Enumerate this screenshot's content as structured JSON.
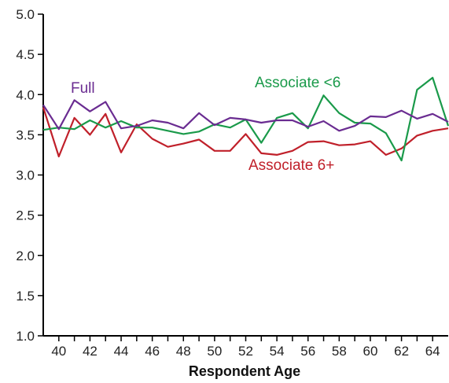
{
  "chart_data": {
    "type": "line",
    "title": "",
    "xlabel": "Respondent Age",
    "ylabel": "",
    "xlim": [
      39,
      65
    ],
    "ylim": [
      1.0,
      5.0
    ],
    "x_tick_labels": [
      "40",
      "42",
      "44",
      "46",
      "48",
      "50",
      "52",
      "54",
      "56",
      "58",
      "60",
      "62",
      "64"
    ],
    "y_tick_labels": [
      "1.0",
      "1.5",
      "2.0",
      "2.5",
      "3.0",
      "3.5",
      "4.0",
      "4.5",
      "5.0"
    ],
    "grid": false,
    "x": [
      39,
      40,
      41,
      42,
      43,
      44,
      45,
      46,
      47,
      48,
      49,
      50,
      51,
      52,
      53,
      54,
      55,
      56,
      57,
      58,
      59,
      60,
      61,
      62,
      63,
      64,
      65
    ],
    "series": [
      {
        "name": "Full",
        "color": "#6a2c91",
        "values": [
          3.87,
          3.57,
          3.93,
          3.79,
          3.91,
          3.58,
          3.61,
          3.68,
          3.65,
          3.58,
          3.77,
          3.62,
          3.71,
          3.69,
          3.65,
          3.68,
          3.68,
          3.6,
          3.67,
          3.55,
          3.61,
          3.73,
          3.72,
          3.8,
          3.7,
          3.76,
          3.66
        ]
      },
      {
        "name": "Associate <6",
        "color": "#1a9a4a",
        "values": [
          3.56,
          3.59,
          3.57,
          3.68,
          3.59,
          3.67,
          3.59,
          3.59,
          3.55,
          3.51,
          3.54,
          3.63,
          3.59,
          3.69,
          3.4,
          3.71,
          3.77,
          3.58,
          3.99,
          3.77,
          3.65,
          3.64,
          3.52,
          3.18,
          4.06,
          4.21,
          3.61
        ]
      },
      {
        "name": "Associate 6+",
        "color": "#c0202a",
        "values": [
          3.84,
          3.23,
          3.71,
          3.5,
          3.76,
          3.28,
          3.63,
          3.45,
          3.35,
          3.39,
          3.44,
          3.3,
          3.3,
          3.51,
          3.27,
          3.25,
          3.3,
          3.41,
          3.42,
          3.37,
          3.38,
          3.42,
          3.25,
          3.33,
          3.49,
          3.55,
          3.58
        ]
      }
    ]
  }
}
